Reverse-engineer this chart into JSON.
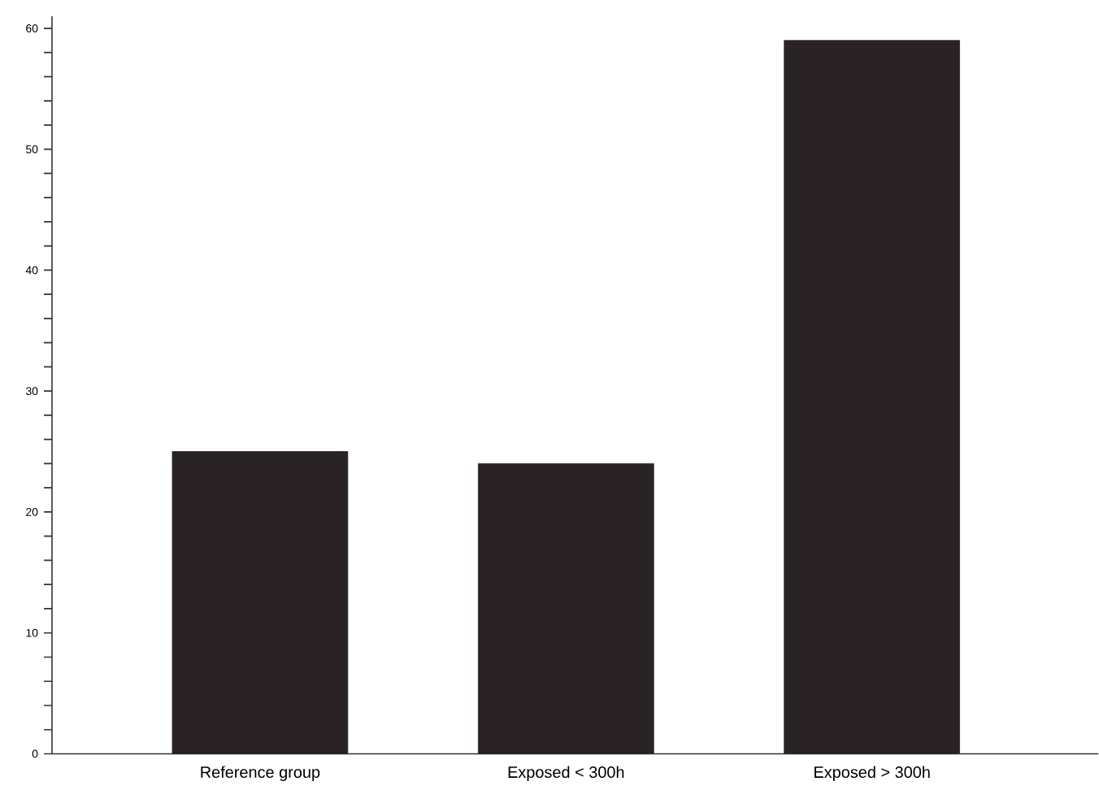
{
  "chart_data": {
    "type": "bar",
    "categories": [
      "Reference group",
      "Exposed < 300h",
      "Exposed > 300h"
    ],
    "values": [
      25,
      24,
      59
    ],
    "color": "#2a2326",
    "ylim": [
      0,
      61
    ],
    "yticks": [
      0,
      {
        "value": 2,
        "label": null
      },
      {
        "value": 4,
        "label": null
      },
      {
        "value": 6,
        "label": null
      },
      {
        "value": 8,
        "label": null
      },
      10,
      {
        "value": 12,
        "label": null
      },
      {
        "value": 14,
        "label": null
      },
      {
        "value": 16,
        "label": null
      },
      {
        "value": 18,
        "label": null
      },
      20,
      {
        "value": 22,
        "label": null
      },
      {
        "value": 24,
        "label": null
      },
      {
        "value": 26,
        "label": null
      },
      {
        "value": 28,
        "label": null
      },
      30,
      {
        "value": 32,
        "label": null
      },
      {
        "value": 34,
        "label": null
      },
      {
        "value": 36,
        "label": null
      },
      {
        "value": 38,
        "label": null
      },
      40,
      {
        "value": 42,
        "label": null
      },
      {
        "value": 44,
        "label": null
      },
      {
        "value": 46,
        "label": null
      },
      {
        "value": 48,
        "label": null
      },
      50,
      {
        "value": 52,
        "label": null
      },
      {
        "value": 54,
        "label": null
      },
      {
        "value": 56,
        "label": null
      },
      {
        "value": 58,
        "label": null
      },
      60
    ],
    "grid": false
  }
}
